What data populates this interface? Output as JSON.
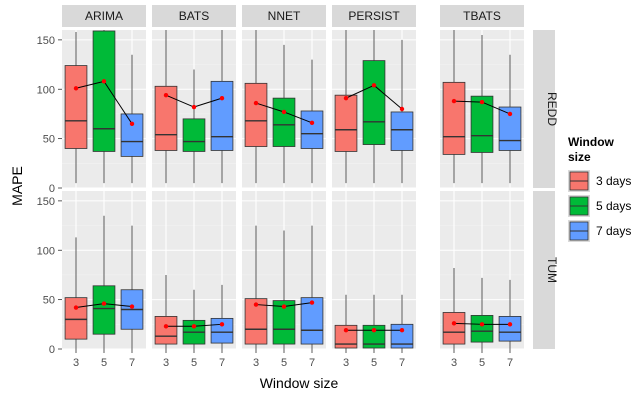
{
  "chart_data": {
    "type": "boxplot",
    "facet_columns": [
      "ARIMA",
      "BATS",
      "NNET",
      "PERSIST",
      "TBATS"
    ],
    "facet_rows": [
      "REDD",
      "TUM"
    ],
    "categories": [
      "3",
      "5",
      "7"
    ],
    "xlabel": "Window size",
    "ylabel": "MAPE",
    "ylim": [
      0,
      160
    ],
    "yticks": [
      0,
      50,
      100,
      150
    ],
    "grid": true,
    "legend": {
      "title_lines": [
        "Window",
        "size"
      ],
      "position": "right",
      "entries": [
        {
          "label": "3 days",
          "color": "#F8766D"
        },
        {
          "label": "5 days",
          "color": "#00BA38"
        },
        {
          "label": "7 days",
          "color": "#619CFF"
        }
      ]
    },
    "panels": [
      {
        "row": "REDD",
        "col": "ARIMA",
        "boxes": [
          {
            "lw": 5,
            "q1": 40,
            "med": 68,
            "q3": 124,
            "uw": 158,
            "mean": 101
          },
          {
            "lw": 5,
            "q1": 37,
            "med": 60,
            "q3": 159,
            "uw": 160,
            "mean": 108
          },
          {
            "lw": 5,
            "q1": 32,
            "med": 47,
            "q3": 75,
            "uw": 135,
            "mean": 65
          }
        ]
      },
      {
        "row": "REDD",
        "col": "BATS",
        "boxes": [
          {
            "lw": 5,
            "q1": 38,
            "med": 54,
            "q3": 103,
            "uw": 160,
            "mean": 94
          },
          {
            "lw": 5,
            "q1": 37,
            "med": 47,
            "q3": 70,
            "uw": 120,
            "mean": 82
          },
          {
            "lw": 5,
            "q1": 38,
            "med": 52,
            "q3": 108,
            "uw": 160,
            "mean": 91
          }
        ]
      },
      {
        "row": "REDD",
        "col": "NNET",
        "boxes": [
          {
            "lw": 5,
            "q1": 42,
            "med": 68,
            "q3": 106,
            "uw": 160,
            "mean": 86
          },
          {
            "lw": 5,
            "q1": 42,
            "med": 64,
            "q3": 91,
            "uw": 145,
            "mean": 77
          },
          {
            "lw": 5,
            "q1": 40,
            "med": 55,
            "q3": 78,
            "uw": 130,
            "mean": 66
          }
        ]
      },
      {
        "row": "REDD",
        "col": "PERSIST",
        "boxes": [
          {
            "lw": 5,
            "q1": 37,
            "med": 59,
            "q3": 94,
            "uw": 160,
            "mean": 91
          },
          {
            "lw": 5,
            "q1": 44,
            "med": 67,
            "q3": 129,
            "uw": 160,
            "mean": 104
          },
          {
            "lw": 5,
            "q1": 38,
            "med": 59,
            "q3": 77,
            "uw": 150,
            "mean": 80
          }
        ]
      },
      {
        "row": "REDD",
        "col": "TBATS",
        "boxes": [
          {
            "lw": 5,
            "q1": 34,
            "med": 52,
            "q3": 107,
            "uw": 160,
            "mean": 88
          },
          {
            "lw": 5,
            "q1": 36,
            "med": 53,
            "q3": 93,
            "uw": 155,
            "mean": 87
          },
          {
            "lw": 5,
            "q1": 38,
            "med": 48,
            "q3": 82,
            "uw": 135,
            "mean": 75
          }
        ]
      },
      {
        "row": "TUM",
        "col": "ARIMA",
        "boxes": [
          {
            "lw": 0,
            "q1": 10,
            "med": 30,
            "q3": 52,
            "uw": 113,
            "mean": 42
          },
          {
            "lw": 0,
            "q1": 15,
            "med": 41,
            "q3": 64,
            "uw": 135,
            "mean": 46
          },
          {
            "lw": 0,
            "q1": 20,
            "med": 40,
            "q3": 60,
            "uw": 125,
            "mean": 43
          }
        ]
      },
      {
        "row": "TUM",
        "col": "BATS",
        "boxes": [
          {
            "lw": 0,
            "q1": 5,
            "med": 13,
            "q3": 33,
            "uw": 75,
            "mean": 23
          },
          {
            "lw": 0,
            "q1": 5,
            "med": 17,
            "q3": 29,
            "uw": 60,
            "mean": 23
          },
          {
            "lw": 0,
            "q1": 6,
            "med": 17,
            "q3": 31,
            "uw": 65,
            "mean": 25
          }
        ]
      },
      {
        "row": "TUM",
        "col": "NNET",
        "boxes": [
          {
            "lw": 0,
            "q1": 5,
            "med": 20,
            "q3": 51,
            "uw": 125,
            "mean": 45
          },
          {
            "lw": 0,
            "q1": 5,
            "med": 20,
            "q3": 49,
            "uw": 120,
            "mean": 43
          },
          {
            "lw": 0,
            "q1": 5,
            "med": 19,
            "q3": 52,
            "uw": 125,
            "mean": 47
          }
        ]
      },
      {
        "row": "TUM",
        "col": "PERSIST",
        "boxes": [
          {
            "lw": 0,
            "q1": 1,
            "med": 5,
            "q3": 24,
            "uw": 55,
            "mean": 19
          },
          {
            "lw": 0,
            "q1": 1,
            "med": 5,
            "q3": 24,
            "uw": 55,
            "mean": 19
          },
          {
            "lw": 0,
            "q1": 1,
            "med": 5,
            "q3": 25,
            "uw": 55,
            "mean": 19
          }
        ]
      },
      {
        "row": "TUM",
        "col": "TBATS",
        "boxes": [
          {
            "lw": 0,
            "q1": 5,
            "med": 17,
            "q3": 37,
            "uw": 82,
            "mean": 26
          },
          {
            "lw": 0,
            "q1": 7,
            "med": 18,
            "q3": 34,
            "uw": 72,
            "mean": 25
          },
          {
            "lw": 0,
            "q1": 8,
            "med": 17,
            "q3": 33,
            "uw": 70,
            "mean": 25
          }
        ]
      }
    ]
  },
  "colors": {
    "panel_bg": "#EBEBEB",
    "grid_major": "#FFFFFF",
    "grid_minor": "#F2F2F2",
    "strip_bg": "#D9D9D9",
    "mean_point": "#FF0000",
    "mean_line": "#000000"
  }
}
